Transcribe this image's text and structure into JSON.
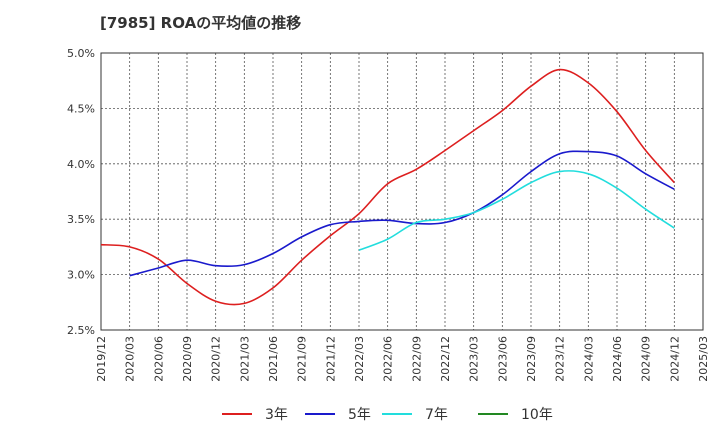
{
  "chart_data": {
    "type": "line",
    "title": "[7985]  ROAの平均値の推移",
    "xlabel": "",
    "ylabel": "",
    "ylim": [
      2.5,
      5.0
    ],
    "grid": true,
    "legend_position": "bottom",
    "y_ticks": [
      "2.5%",
      "3.0%",
      "3.5%",
      "4.0%",
      "4.5%",
      "5.0%"
    ],
    "x_ticks": [
      "2019/12",
      "2020/03",
      "2020/06",
      "2020/09",
      "2020/12",
      "2021/03",
      "2021/06",
      "2021/09",
      "2021/12",
      "2022/03",
      "2022/06",
      "2022/09",
      "2022/12",
      "2023/03",
      "2023/06",
      "2023/09",
      "2023/12",
      "2024/03",
      "2024/06",
      "2024/09",
      "2024/12",
      "2025/03"
    ],
    "series": [
      {
        "name": "3年",
        "color": "#dd1f1f",
        "x": [
          "2019/12",
          "2020/03",
          "2020/06",
          "2020/09",
          "2020/12",
          "2021/03",
          "2021/06",
          "2021/09",
          "2021/12",
          "2022/03",
          "2022/06",
          "2022/09",
          "2022/12",
          "2023/03",
          "2023/06",
          "2023/09",
          "2023/12",
          "2024/03",
          "2024/06",
          "2024/09",
          "2024/12"
        ],
        "values": [
          3.27,
          3.25,
          3.14,
          2.92,
          2.76,
          2.74,
          2.88,
          3.13,
          3.35,
          3.55,
          3.82,
          3.95,
          4.12,
          4.3,
          4.48,
          4.7,
          4.85,
          4.73,
          4.47,
          4.12,
          3.83
        ]
      },
      {
        "name": "5年",
        "color": "#1a1acc",
        "x": [
          "2020/03",
          "2020/06",
          "2020/09",
          "2020/12",
          "2021/03",
          "2021/06",
          "2021/09",
          "2021/12",
          "2022/03",
          "2022/06",
          "2022/09",
          "2022/12",
          "2023/03",
          "2023/06",
          "2023/09",
          "2023/12",
          "2024/03",
          "2024/06",
          "2024/09",
          "2024/12"
        ],
        "values": [
          2.99,
          3.06,
          3.13,
          3.08,
          3.09,
          3.19,
          3.34,
          3.45,
          3.48,
          3.49,
          3.46,
          3.47,
          3.56,
          3.72,
          3.93,
          4.09,
          4.11,
          4.07,
          3.91,
          3.77
        ]
      },
      {
        "name": "7年",
        "color": "#22dddd",
        "x": [
          "2022/03",
          "2022/06",
          "2022/09",
          "2022/12",
          "2023/03",
          "2023/06",
          "2023/09",
          "2023/12",
          "2024/03",
          "2024/06",
          "2024/09",
          "2024/12"
        ],
        "values": [
          3.22,
          3.32,
          3.47,
          3.5,
          3.56,
          3.68,
          3.83,
          3.93,
          3.91,
          3.78,
          3.59,
          3.42
        ]
      },
      {
        "name": "10年",
        "color": "#228822",
        "x": [],
        "values": []
      }
    ]
  }
}
